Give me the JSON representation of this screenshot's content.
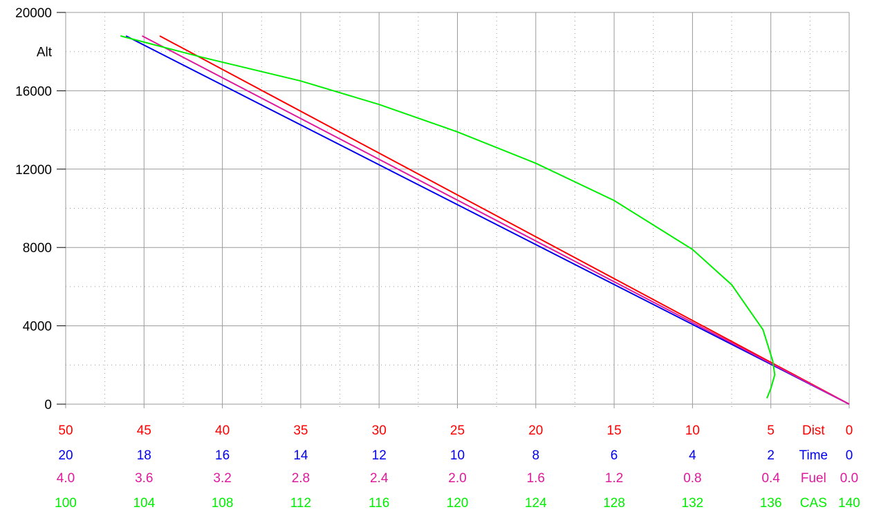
{
  "chart_data": {
    "type": "line",
    "ylabel": "Alt",
    "ylim": [
      0,
      20000
    ],
    "yticks": [
      "0",
      "4000",
      "8000",
      "12000",
      "16000",
      "20000"
    ],
    "grid": true,
    "colors": {
      "dist": "#ff0000",
      "time": "#0000ee",
      "fuel": "#e0189c",
      "cas": "#00ee00"
    },
    "x_axes": [
      {
        "name": "Dist",
        "color": "#ff0000",
        "range": [
          50,
          0
        ],
        "ticks": [
          "50",
          "45",
          "40",
          "35",
          "30",
          "25",
          "20",
          "15",
          "10",
          "5",
          "0"
        ]
      },
      {
        "name": "Time",
        "color": "#0000ee",
        "range": [
          20,
          0
        ],
        "ticks": [
          "20",
          "18",
          "16",
          "14",
          "12",
          "10",
          "8",
          "6",
          "4",
          "2",
          "0"
        ]
      },
      {
        "name": "Fuel",
        "color": "#e0189c",
        "range": [
          4.0,
          0.0
        ],
        "ticks": [
          "4.0",
          "3.6",
          "3.2",
          "2.8",
          "2.4",
          "2.0",
          "1.6",
          "1.2",
          "0.8",
          "0.4",
          "0.0"
        ]
      },
      {
        "name": "CAS",
        "color": "#00ee00",
        "range": [
          100,
          140
        ],
        "ticks": [
          "100",
          "104",
          "108",
          "112",
          "116",
          "120",
          "124",
          "128",
          "132",
          "136",
          "140"
        ]
      }
    ],
    "series": [
      {
        "name": "Dist",
        "color": "#ff0000",
        "x": [
          0,
          44.0
        ],
        "y": [
          0,
          18800
        ]
      },
      {
        "name": "Time",
        "color": "#0000ee",
        "x": [
          0,
          18.46
        ],
        "y": [
          0,
          18800
        ]
      },
      {
        "name": "Fuel",
        "color": "#e0189c",
        "x": [
          0,
          3.61
        ],
        "y": [
          0,
          18800
        ]
      },
      {
        "name": "CAS",
        "color": "#00ee00",
        "x": [
          102.8,
          107,
          112,
          116,
          120,
          124,
          128,
          132,
          134,
          135.6,
          136.1,
          136.2,
          136.0,
          135.8
        ],
        "y": [
          18800,
          17700,
          16500,
          15300,
          13900,
          12300,
          10400,
          7900,
          6100,
          3800,
          2200,
          1500,
          800,
          300
        ]
      }
    ]
  }
}
